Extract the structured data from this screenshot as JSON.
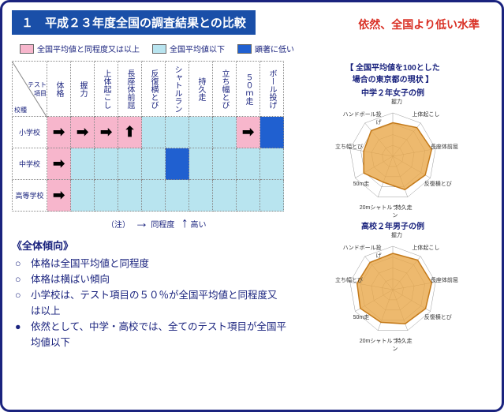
{
  "title": "１　平成２３年度全国の調査結果との比較",
  "subtitle": "依然、全国より低い水準",
  "legend": {
    "above": {
      "color": "#f7b6cc",
      "label": "全国平均値と同程度又は以上"
    },
    "below": {
      "color": "#b8e4ef",
      "label": "全国平均値以下"
    },
    "much_below": {
      "color": "#2060d0",
      "label": "顕著に低い"
    }
  },
  "table": {
    "corner_top": "テスト\n項目",
    "corner_bottom": "校種",
    "cols": [
      "体格",
      "握力",
      "上体起こし",
      "長座体前屈",
      "反復横とび",
      "シャトルラン",
      "持久走",
      "立ち幅とび",
      "５０ｍ走",
      "ボール投げ"
    ],
    "rows": [
      {
        "label": "小学校",
        "cells": [
          {
            "bg": "#f7b6cc",
            "arrow": "right"
          },
          {
            "bg": "#f7b6cc",
            "arrow": "right"
          },
          {
            "bg": "#f7b6cc",
            "arrow": "right"
          },
          {
            "bg": "#f7b6cc",
            "arrow": "up"
          },
          {
            "bg": "#b8e4ef",
            "arrow": null
          },
          {
            "bg": "#b8e4ef",
            "arrow": null
          },
          {
            "bg": "#b8e4ef",
            "arrow": null
          },
          {
            "bg": "#b8e4ef",
            "arrow": null
          },
          {
            "bg": "#f7b6cc",
            "arrow": "right"
          },
          {
            "bg": "#2060d0",
            "arrow": null
          }
        ]
      },
      {
        "label": "中学校",
        "cells": [
          {
            "bg": "#f7b6cc",
            "arrow": "right"
          },
          {
            "bg": "#b8e4ef",
            "arrow": null
          },
          {
            "bg": "#b8e4ef",
            "arrow": null
          },
          {
            "bg": "#b8e4ef",
            "arrow": null
          },
          {
            "bg": "#b8e4ef",
            "arrow": null
          },
          {
            "bg": "#2060d0",
            "arrow": null
          },
          {
            "bg": "#b8e4ef",
            "arrow": null
          },
          {
            "bg": "#b8e4ef",
            "arrow": null
          },
          {
            "bg": "#b8e4ef",
            "arrow": null
          },
          {
            "bg": "#b8e4ef",
            "arrow": null
          }
        ]
      },
      {
        "label": "高等学校",
        "cells": [
          {
            "bg": "#f7b6cc",
            "arrow": "right"
          },
          {
            "bg": "#b8e4ef",
            "arrow": null
          },
          {
            "bg": "#b8e4ef",
            "arrow": null
          },
          {
            "bg": "#b8e4ef",
            "arrow": null
          },
          {
            "bg": "#b8e4ef",
            "arrow": null
          },
          {
            "bg": "#b8e4ef",
            "arrow": null
          },
          {
            "bg": "#b8e4ef",
            "arrow": null
          },
          {
            "bg": "#b8e4ef",
            "arrow": null
          },
          {
            "bg": "#b8e4ef",
            "arrow": null
          },
          {
            "bg": "#b8e4ef",
            "arrow": null
          }
        ]
      }
    ],
    "note_label": "（注）",
    "note_same": "同程度",
    "note_high": "高い"
  },
  "trends_header": "《全体傾向》",
  "trends": [
    {
      "marker": "○",
      "text": "体格は全国平均値と同程度"
    },
    {
      "marker": "○",
      "text": "体格は横ばい傾向"
    },
    {
      "marker": "○",
      "text": "小学校は、テスト項目の５０％が全国平均値と同程度又は以上"
    },
    {
      "marker": "●",
      "text": "依然として、中学・高校では、全てのテスト項目が全国平均値以下"
    }
  ],
  "radar": {
    "main_title": "【 全国平均値を100とした\n場合の東京都の現状 】",
    "charts": [
      {
        "title": "中学２年女子の例",
        "axes": [
          "握力",
          "上体起こし",
          "長座体前屈",
          "反復横とび",
          "持久走",
          "20mシャトルラン",
          "50m走",
          "立ち幅とび",
          "ハンドボール投げ"
        ],
        "values": [
          85,
          95,
          100,
          95,
          90,
          70,
          85,
          75,
          85
        ],
        "max": 110,
        "fill": "#e8a84a",
        "stroke": "#c47a1a",
        "grid_color": "#999"
      },
      {
        "title": "高校２年男子の例",
        "axes": [
          "握力",
          "上体起こし",
          "長座体前屈",
          "反復横とび",
          "持久走",
          "20mシャトルラン",
          "50m走",
          "立ち幅とび",
          "ハンドボール投げ"
        ],
        "values": [
          92,
          98,
          100,
          96,
          92,
          88,
          95,
          92,
          90
        ],
        "max": 110,
        "fill": "#e8a84a",
        "stroke": "#c47a1a",
        "grid_color": "#999"
      }
    ]
  }
}
